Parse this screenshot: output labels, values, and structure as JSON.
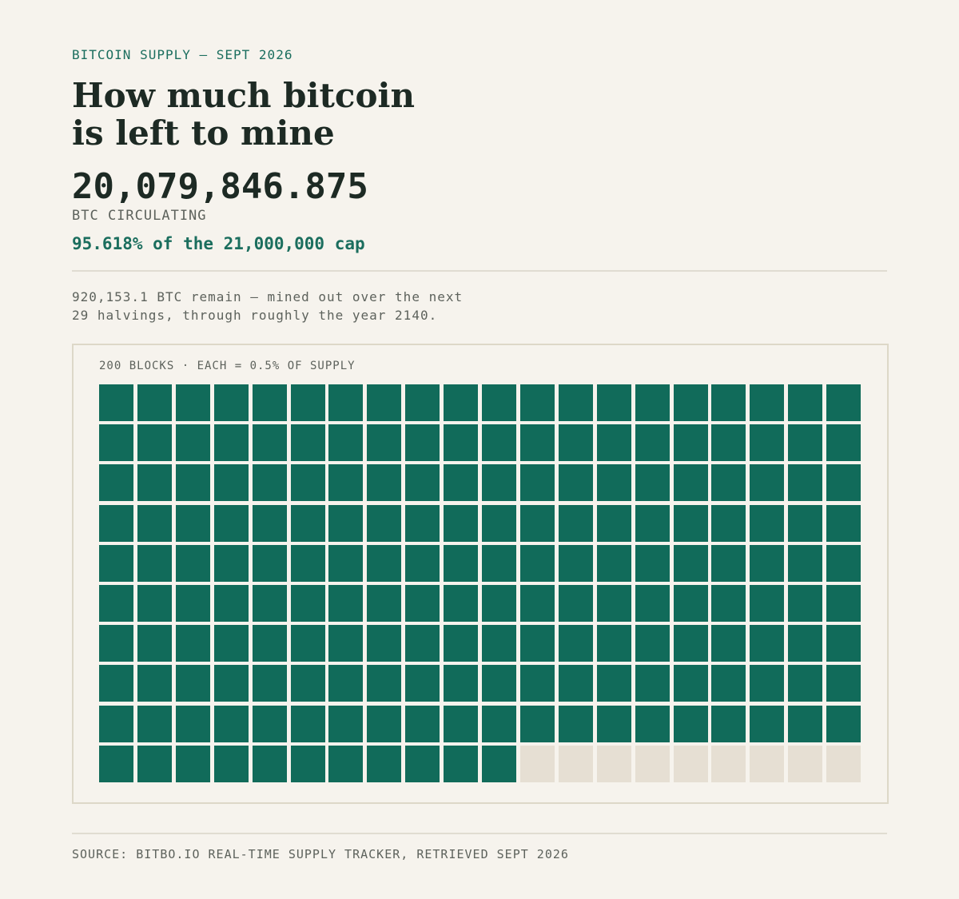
{
  "kicker": "BITCOIN SUPPLY — SEPT 2026",
  "title": [
    "How much bitcoin",
    "is left to mine"
  ],
  "circulating": "20,079,846.875",
  "circulating_label": "BTC CIRCULATING",
  "cap_note": "95.618% of the 21,000,000 cap",
  "remain_note": [
    "920,153.1 BTC remain — mined out over the next",
    "29 halvings, through roughly the year 2140."
  ],
  "source": "SOURCE: BITBO.IO REAL-TIME SUPPLY TRACKER, RETRIEVED SEPT 2026",
  "chart_data": {
    "type": "waffle",
    "title": "200 BLOCKS · EACH = 0.5% OF SUPPLY",
    "columns": 20,
    "values": [
      191,
      9
    ],
    "colors": [
      "#116b5a",
      "#e6dfd3"
    ]
  }
}
